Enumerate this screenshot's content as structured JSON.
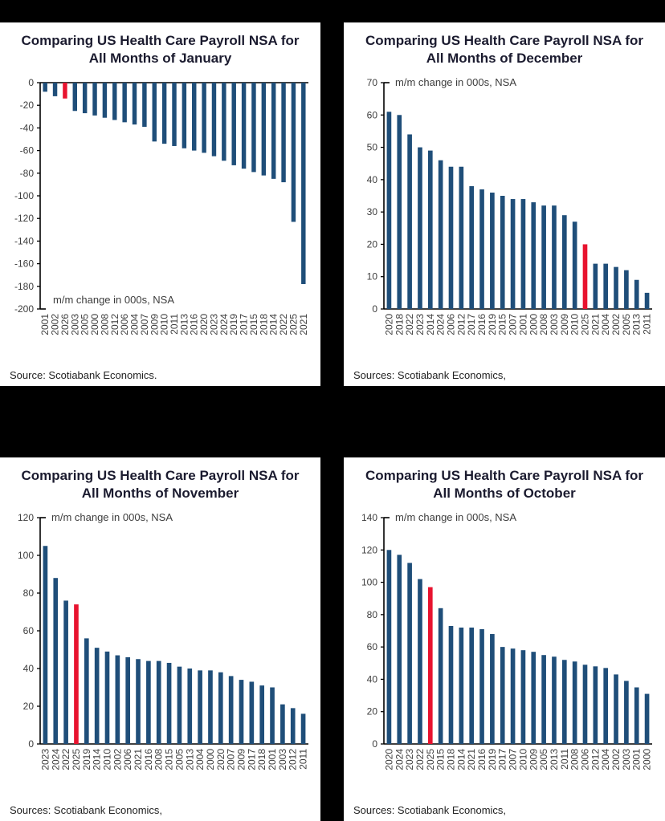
{
  "page": {
    "background": "#000000",
    "panel_background": "#ffffff"
  },
  "colors": {
    "bar": "#1f4e79",
    "highlight": "#e8132f",
    "axis": "#000000",
    "tick_label": "#3d3d3d",
    "annotation": "#3d3d3d",
    "title": "#1b1b2f",
    "source": "#222222"
  },
  "chart_data": [
    {
      "type": "bar",
      "title": "Comparing US Health Care Payroll NSA for All Months of January",
      "annotation": "m/m change in 000s, NSA",
      "annotation_pos": "bottom",
      "source": "Source: Scotiabank Economics.",
      "categories": [
        "2001",
        "2002",
        "2026",
        "2003",
        "2005",
        "2000",
        "2008",
        "2012",
        "2006",
        "2004",
        "2007",
        "2009",
        "2010",
        "2011",
        "2013",
        "2016",
        "2020",
        "2023",
        "2024",
        "2019",
        "2017",
        "2015",
        "2018",
        "2014",
        "2022",
        "2025",
        "2021"
      ],
      "values": [
        -8,
        -12,
        -14,
        -25,
        -27,
        -29,
        -31,
        -33,
        -35,
        -37,
        -39,
        -52,
        -54,
        -56,
        -58,
        -60,
        -62,
        -65,
        -69,
        -73,
        -76,
        -79,
        -82,
        -85,
        -88,
        -123,
        -178
      ],
      "highlight_index": 2,
      "highlight_label": "2026",
      "ylim": [
        -200,
        0
      ],
      "yticks": [
        0,
        -20,
        -40,
        -60,
        -80,
        -100,
        -120,
        -140,
        -160,
        -180,
        -200
      ],
      "grid": false,
      "legend": "none"
    },
    {
      "type": "bar",
      "title": "Comparing US Health Care Payroll NSA for All Months of December",
      "annotation": "m/m change in 000s, NSA",
      "annotation_pos": "top",
      "source": "Sources: Scotiabank Economics,",
      "categories": [
        "2020",
        "2018",
        "2022",
        "2023",
        "2014",
        "2024",
        "2006",
        "2012",
        "2017",
        "2016",
        "2019",
        "2015",
        "2007",
        "2001",
        "2000",
        "2008",
        "2003",
        "2009",
        "2010",
        "2025",
        "2021",
        "2004",
        "2002",
        "2005",
        "2013",
        "2011"
      ],
      "values": [
        61,
        60,
        54,
        50,
        49,
        46,
        44,
        44,
        38,
        37,
        36,
        35,
        34,
        34,
        33,
        32,
        32,
        29,
        27,
        20,
        14,
        14,
        13,
        12,
        9,
        5
      ],
      "highlight_index": 19,
      "highlight_label": "2025",
      "ylim": [
        0,
        70
      ],
      "yticks": [
        0,
        10,
        20,
        30,
        40,
        50,
        60,
        70
      ],
      "grid": false,
      "legend": "none"
    },
    {
      "type": "bar",
      "title": "Comparing US Health Care Payroll NSA for All Months of November",
      "annotation": "m/m change in 000s, NSA",
      "annotation_pos": "top",
      "source": "Sources: Scotiabank Economics,",
      "categories": [
        "2023",
        "2024",
        "2022",
        "2025",
        "2019",
        "2014",
        "2010",
        "2002",
        "2006",
        "2021",
        "2016",
        "2008",
        "2015",
        "2005",
        "2013",
        "2004",
        "2000",
        "2020",
        "2007",
        "2009",
        "2017",
        "2018",
        "2001",
        "2003",
        "2012",
        "2011"
      ],
      "values": [
        105,
        88,
        76,
        74,
        56,
        51,
        49,
        47,
        46,
        45,
        44,
        44,
        43,
        41,
        40,
        39,
        39,
        38,
        36,
        34,
        33,
        31,
        30,
        21,
        19,
        16
      ],
      "highlight_index": 3,
      "highlight_label": "2025",
      "ylim": [
        0,
        120
      ],
      "yticks": [
        0,
        20,
        40,
        60,
        80,
        100,
        120
      ],
      "grid": false,
      "legend": "none"
    },
    {
      "type": "bar",
      "title": "Comparing US Health Care Payroll NSA for All Months of October",
      "annotation": "m/m change in 000s, NSA",
      "annotation_pos": "top",
      "source": "Sources: Scotiabank Economics,",
      "categories": [
        "2020",
        "2024",
        "2023",
        "2022",
        "2025",
        "2015",
        "2018",
        "2014",
        "2021",
        "2016",
        "2019",
        "2017",
        "2007",
        "2010",
        "2009",
        "2005",
        "2013",
        "2011",
        "2008",
        "2006",
        "2012",
        "2004",
        "2002",
        "2003",
        "2001",
        "2000"
      ],
      "values": [
        120,
        117,
        112,
        102,
        97,
        84,
        73,
        72,
        72,
        71,
        68,
        60,
        59,
        58,
        57,
        55,
        54,
        52,
        51,
        49,
        48,
        47,
        43,
        39,
        35,
        31
      ],
      "highlight_index": 4,
      "highlight_label": "2025",
      "ylim": [
        0,
        140
      ],
      "yticks": [
        0,
        20,
        40,
        60,
        80,
        100,
        120,
        140
      ],
      "grid": false,
      "legend": "none"
    }
  ]
}
